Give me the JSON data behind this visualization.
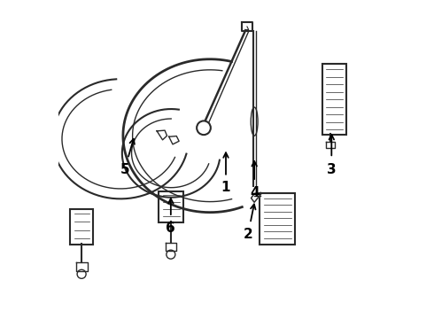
{
  "background_color": "#ffffff",
  "line_color": "#2a2a2a",
  "label_color": "#000000",
  "figsize": [
    4.9,
    3.6
  ],
  "dpi": 100
}
